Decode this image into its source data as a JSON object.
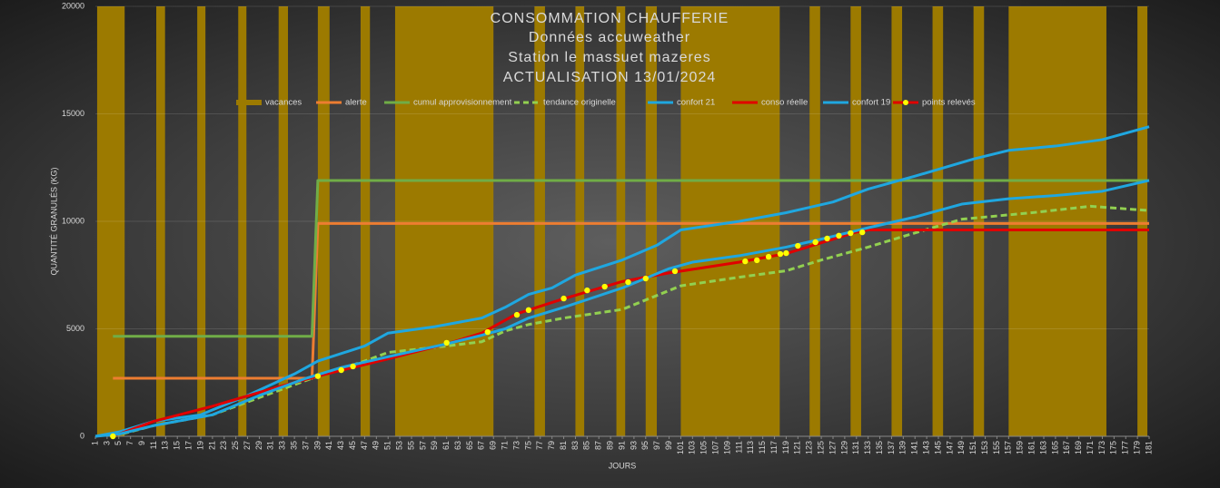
{
  "chart_data": {
    "type": "line",
    "title": "CONSOMMATION  CHAUFFERIE",
    "subtitle": [
      "Données  accuweather",
      "Station  le massuet mazeres",
      "ACTUALISATION  13/01/2024"
    ],
    "x_label": "JOURS",
    "y_label": "QUANTITÉ GRANULÉS (KG)",
    "xlim": [
      1,
      181
    ],
    "ylim": [
      0,
      20000
    ],
    "yticks": [
      0,
      5000,
      10000,
      15000,
      20000
    ],
    "xticks": [
      1,
      3,
      5,
      7,
      9,
      11,
      13,
      15,
      17,
      19,
      21,
      23,
      25,
      27,
      29,
      31,
      33,
      35,
      37,
      39,
      41,
      43,
      45,
      47,
      49,
      51,
      53,
      55,
      57,
      59,
      61,
      63,
      65,
      67,
      69,
      71,
      73,
      75,
      77,
      79,
      81,
      83,
      85,
      87,
      89,
      91,
      93,
      95,
      97,
      99,
      101,
      103,
      105,
      107,
      109,
      111,
      113,
      115,
      117,
      119,
      121,
      123,
      125,
      127,
      129,
      131,
      133,
      135,
      137,
      139,
      141,
      143,
      145,
      147,
      149,
      151,
      153,
      155,
      157,
      159,
      161,
      163,
      165,
      167,
      169,
      171,
      173,
      175,
      177,
      179,
      181
    ],
    "series": [
      {
        "name": "vacances",
        "color": "#9c7a00",
        "style": "band",
        "x_start": [
          1.3,
          11.4,
          18.4,
          25.4,
          32.3,
          39,
          46.3,
          52.2,
          76,
          83,
          90,
          95,
          101,
          123,
          130,
          137,
          144,
          151,
          157,
          179
        ],
        "x_end": [
          6,
          12.9,
          19.8,
          26.8,
          33.9,
          41,
          47.9,
          69,
          77.8,
          84.5,
          91.5,
          96.9,
          117.9,
          124.8,
          131.8,
          138.8,
          145.8,
          152.8,
          173.7,
          180.7
        ],
        "values": [
          20000,
          20000,
          20000,
          20000,
          20000,
          20000,
          20000,
          20000,
          20000,
          20000,
          20000,
          20000,
          20000,
          20000,
          20000,
          20000,
          20000,
          20000,
          20000,
          20000
        ]
      },
      {
        "name": "alerte",
        "color": "#ed7d31",
        "style": "line",
        "x": [
          4,
          38,
          39,
          181
        ],
        "values": [
          2700,
          2700,
          9900,
          9900
        ]
      },
      {
        "name": "cumul approvisionnement",
        "color": "#70ad47",
        "style": "line",
        "x": [
          4,
          38,
          39,
          181
        ],
        "values": [
          4650,
          4650,
          11900,
          11900
        ]
      },
      {
        "name": "tendance originelle",
        "color": "#92d050",
        "style": "dashed",
        "x": [
          4,
          11,
          21,
          31,
          38,
          47,
          51,
          61,
          67,
          71,
          75,
          81,
          91,
          101,
          111,
          119,
          125,
          133,
          139,
          149,
          161,
          171,
          181
        ],
        "values": [
          0,
          500,
          1000,
          2000,
          2700,
          3500,
          3900,
          4200,
          4400,
          4900,
          5200,
          5500,
          5900,
          7000,
          7400,
          7700,
          8200,
          8800,
          9300,
          10100,
          10400,
          10700,
          10500
        ]
      },
      {
        "name": "confort 21",
        "color": "#1fa7e0",
        "style": "line",
        "x": [
          1,
          5,
          11,
          19,
          27,
          35,
          39,
          47,
          51,
          59,
          67,
          71,
          75,
          79,
          83,
          91,
          97,
          101,
          111,
          119,
          127,
          133,
          141,
          151,
          157,
          165,
          173,
          181
        ],
        "values": [
          0,
          200,
          700,
          1000,
          1900,
          2900,
          3500,
          4200,
          4800,
          5100,
          5500,
          6000,
          6600,
          6900,
          7500,
          8200,
          8900,
          9600,
          10000,
          10400,
          10900,
          11500,
          12100,
          12900,
          13300,
          13500,
          13800,
          14400
        ]
      },
      {
        "name": "conso réelle",
        "color": "#e00000",
        "style": "line",
        "x": [
          4,
          11,
          21,
          31,
          39,
          51,
          61,
          67,
          73,
          81,
          91,
          99,
          111,
          119,
          125,
          131,
          133,
          181
        ],
        "values": [
          0,
          700,
          1400,
          2200,
          2800,
          3600,
          4300,
          4800,
          5700,
          6400,
          7200,
          7600,
          8100,
          8500,
          9000,
          9500,
          9600,
          9600
        ]
      },
      {
        "name": "confort 19",
        "color": "#1fa7e0",
        "style": "line",
        "x": [
          1,
          5,
          11,
          21,
          29,
          37,
          43,
          51,
          61,
          67,
          71,
          75,
          81,
          91,
          99,
          103,
          111,
          119,
          127,
          133,
          141,
          149,
          157,
          165,
          173,
          181
        ],
        "values": [
          0,
          100,
          500,
          1000,
          1900,
          2700,
          3200,
          3700,
          4300,
          4700,
          5000,
          5500,
          6000,
          6900,
          7800,
          8100,
          8400,
          8800,
          9300,
          9700,
          10200,
          10800,
          11050,
          11200,
          11400,
          11900
        ]
      },
      {
        "name": "points relevés",
        "color": "#ffff00",
        "style": "points",
        "x": [
          4,
          39,
          43,
          45,
          61,
          68,
          73,
          75,
          81,
          85,
          88,
          92,
          95,
          100,
          112,
          114,
          116,
          118,
          119,
          121,
          124,
          126,
          128,
          130,
          132
        ],
        "values": [
          0,
          2800,
          3080,
          3250,
          4350,
          4850,
          5650,
          5870,
          6410,
          6790,
          6960,
          7170,
          7340,
          7680,
          8140,
          8190,
          8350,
          8480,
          8520,
          8860,
          9030,
          9200,
          9330,
          9450,
          9490
        ]
      }
    ]
  }
}
